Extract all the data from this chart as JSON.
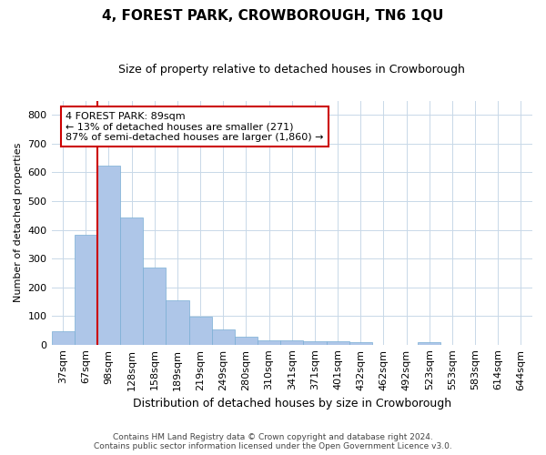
{
  "title": "4, FOREST PARK, CROWBOROUGH, TN6 1QU",
  "subtitle": "Size of property relative to detached houses in Crowborough",
  "xlabel": "Distribution of detached houses by size in Crowborough",
  "ylabel": "Number of detached properties",
  "categories": [
    "37sqm",
    "67sqm",
    "98sqm",
    "128sqm",
    "158sqm",
    "189sqm",
    "219sqm",
    "249sqm",
    "280sqm",
    "310sqm",
    "341sqm",
    "371sqm",
    "401sqm",
    "432sqm",
    "462sqm",
    "492sqm",
    "523sqm",
    "553sqm",
    "583sqm",
    "614sqm",
    "644sqm"
  ],
  "values": [
    47,
    383,
    625,
    443,
    267,
    155,
    97,
    52,
    28,
    16,
    15,
    11,
    11,
    9,
    0,
    0,
    7,
    0,
    0,
    0,
    0
  ],
  "bar_color": "#aec6e8",
  "bar_edge_color": "#7aaed4",
  "annotation_line1": "4 FOREST PARK: 89sqm",
  "annotation_line2": "← 13% of detached houses are smaller (271)",
  "annotation_line3": "87% of semi-detached houses are larger (1,860) →",
  "vline_color": "#cc0000",
  "box_edge_color": "#cc0000",
  "footer_line1": "Contains HM Land Registry data © Crown copyright and database right 2024.",
  "footer_line2": "Contains public sector information licensed under the Open Government Licence v3.0.",
  "ylim": [
    0,
    850
  ],
  "yticks": [
    0,
    100,
    200,
    300,
    400,
    500,
    600,
    700,
    800
  ],
  "background_color": "#ffffff",
  "grid_color": "#c8d8e8",
  "vline_x": 1.5,
  "title_fontsize": 11,
  "subtitle_fontsize": 9,
  "ylabel_fontsize": 8,
  "xlabel_fontsize": 9,
  "tick_fontsize": 8,
  "annot_fontsize": 8,
  "footer_fontsize": 6.5
}
